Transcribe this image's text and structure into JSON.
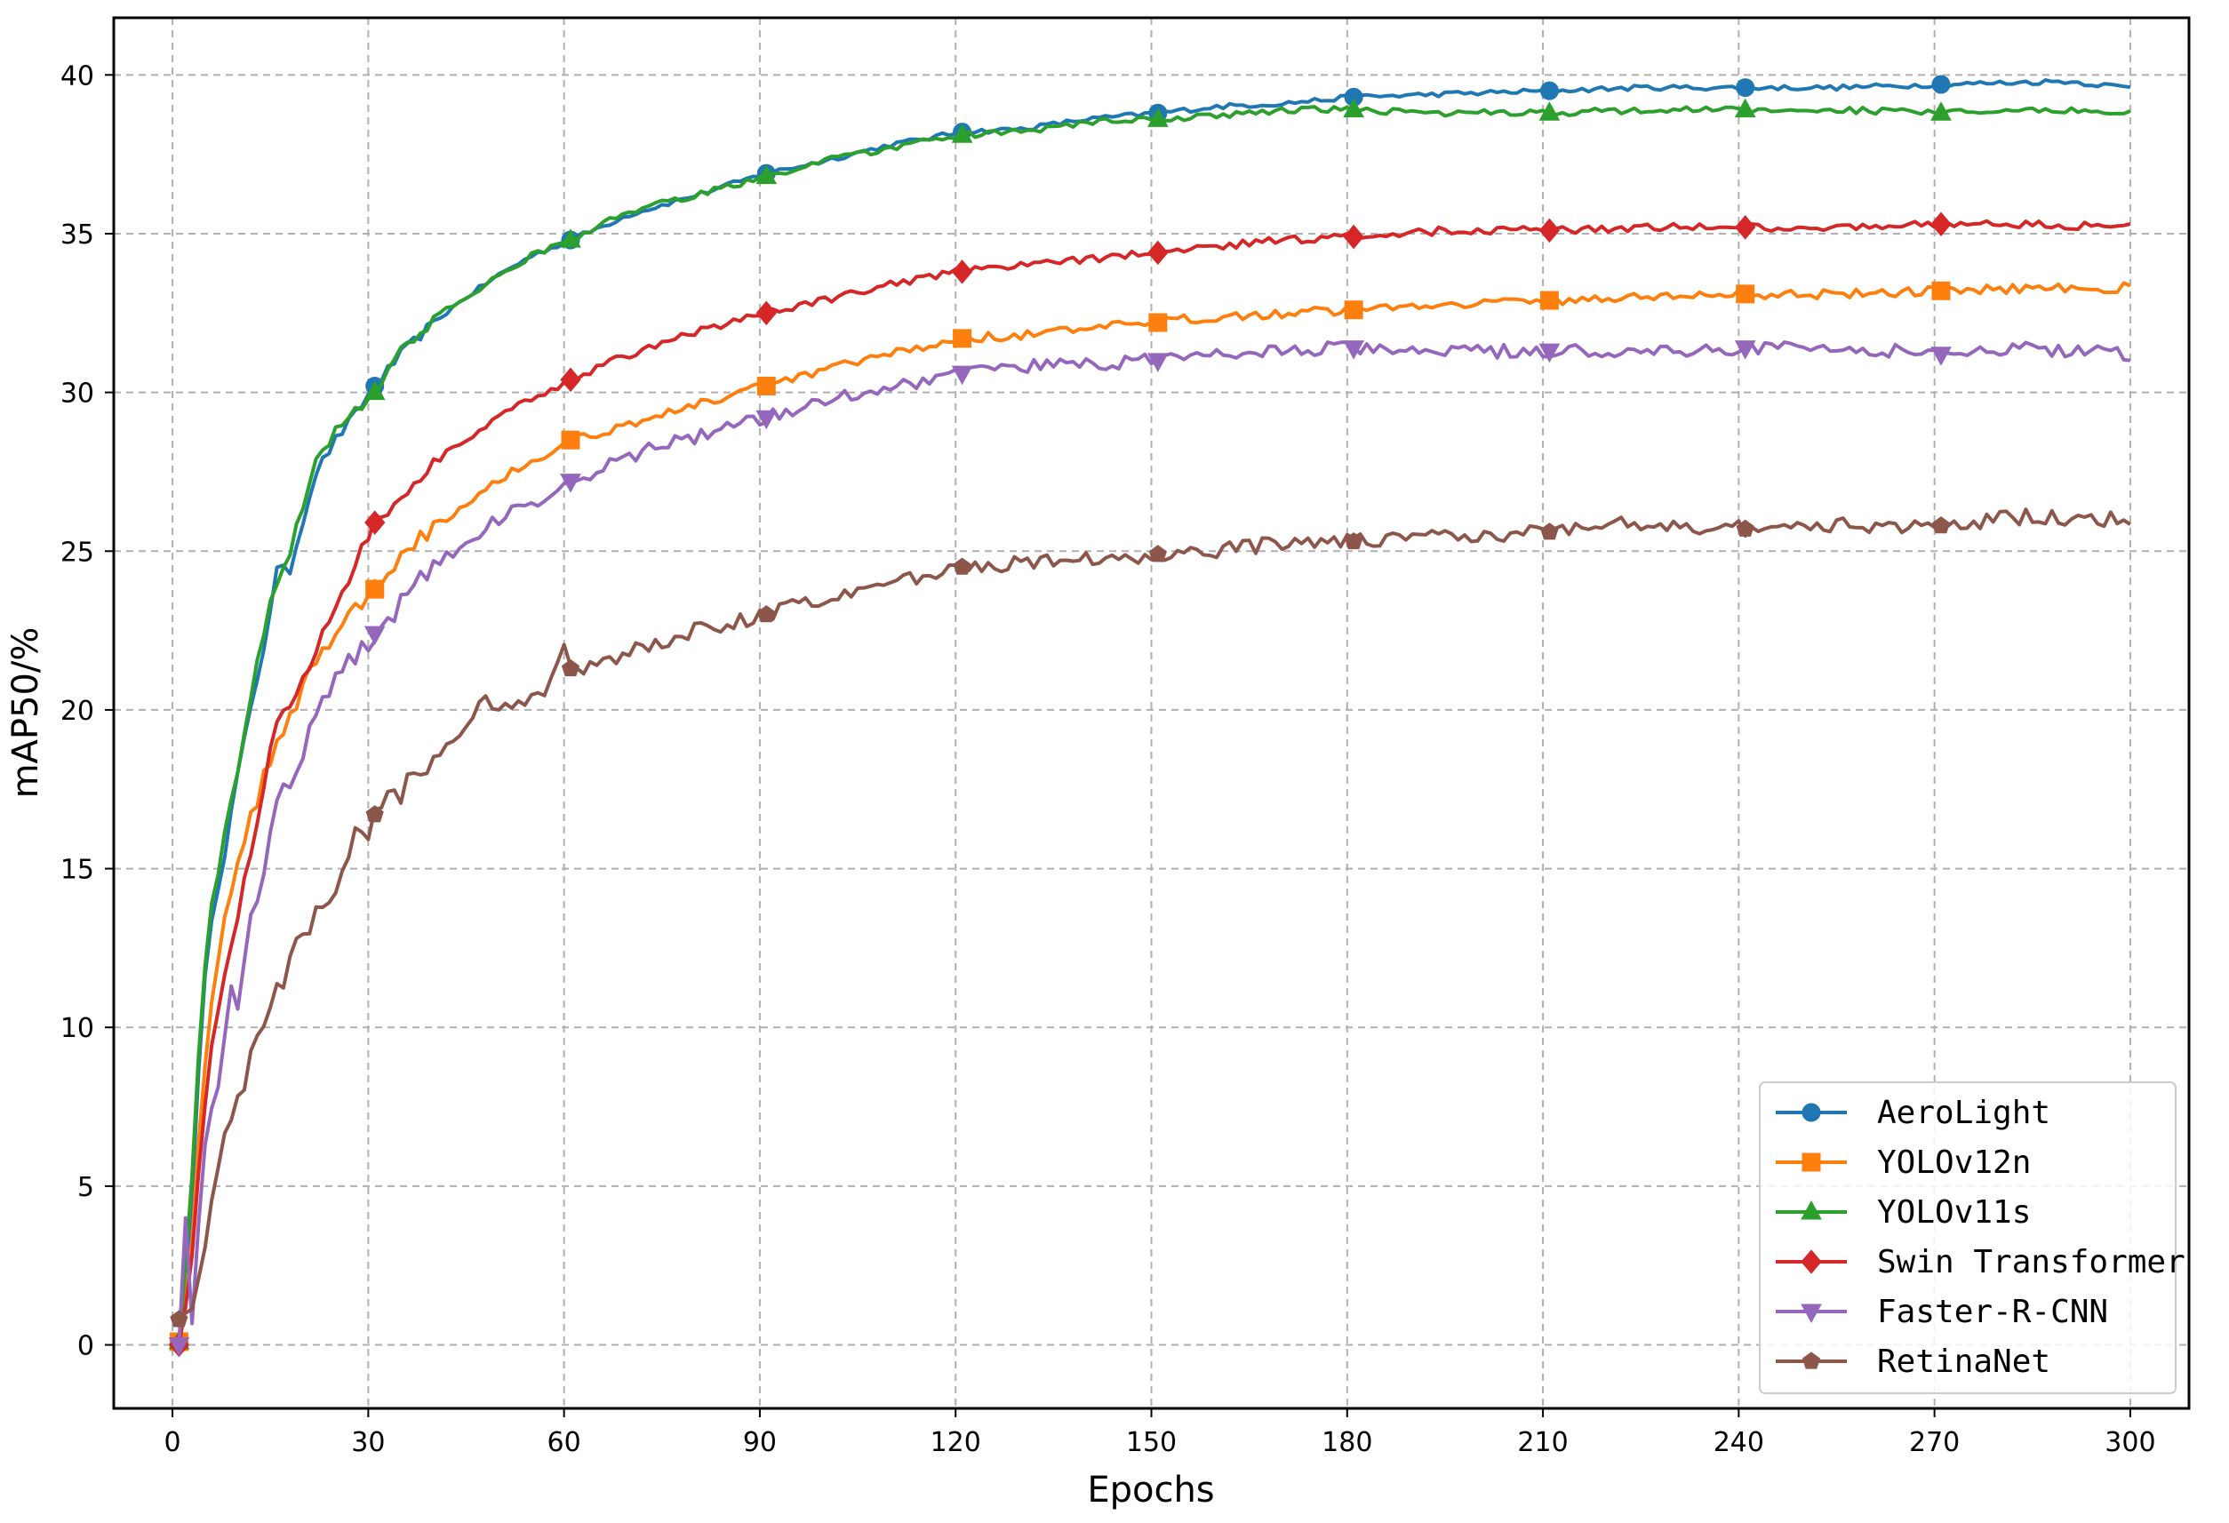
{
  "chart_data": {
    "type": "line",
    "title": "",
    "xlabel": "Epochs",
    "ylabel": "mAP50/%",
    "xlim": [
      -9,
      309
    ],
    "ylim": [
      -2,
      41.8
    ],
    "xticks": [
      0,
      30,
      60,
      90,
      120,
      150,
      180,
      210,
      240,
      270,
      300
    ],
    "yticks": [
      0,
      5,
      10,
      15,
      20,
      25,
      30,
      35,
      40
    ],
    "grid": true,
    "grid_style": "dashed",
    "legend_position": "lower-right",
    "marker_epochs": [
      1,
      31,
      61,
      91,
      121,
      151,
      181,
      211,
      241,
      271
    ],
    "series": [
      {
        "name": "AeroLight",
        "color": "#1f77b4",
        "marker": "circle",
        "points": [
          [
            1,
            0.1
          ],
          [
            2,
            2
          ],
          [
            3,
            4.8
          ],
          [
            4,
            8.5
          ],
          [
            5,
            11.5
          ],
          [
            6,
            13.5
          ],
          [
            8,
            15.5
          ],
          [
            10,
            18
          ],
          [
            12,
            20
          ],
          [
            14,
            22
          ],
          [
            16,
            24.4
          ],
          [
            18,
            24.4
          ],
          [
            20,
            26
          ],
          [
            22,
            27.5
          ],
          [
            25,
            28.5
          ],
          [
            28,
            29.3
          ],
          [
            31,
            30.2
          ],
          [
            35,
            31.2
          ],
          [
            40,
            32.2
          ],
          [
            45,
            33
          ],
          [
            50,
            33.7
          ],
          [
            55,
            34.3
          ],
          [
            61,
            34.8
          ],
          [
            70,
            35.6
          ],
          [
            80,
            36.2
          ],
          [
            91,
            36.9
          ],
          [
            100,
            37.3
          ],
          [
            110,
            37.8
          ],
          [
            121,
            38.2
          ],
          [
            130,
            38.3
          ],
          [
            140,
            38.6
          ],
          [
            151,
            38.8
          ],
          [
            160,
            39
          ],
          [
            170,
            39.1
          ],
          [
            181,
            39.3
          ],
          [
            195,
            39.4
          ],
          [
            211,
            39.5
          ],
          [
            225,
            39.6
          ],
          [
            241,
            39.6
          ],
          [
            255,
            39.6
          ],
          [
            271,
            39.7
          ],
          [
            290,
            39.8
          ],
          [
            300,
            39.6
          ]
        ]
      },
      {
        "name": "YOLOv12n",
        "color": "#ff7f0e",
        "marker": "square",
        "points": [
          [
            1,
            0.1
          ],
          [
            2,
            1.5
          ],
          [
            3,
            3.5
          ],
          [
            4,
            6.5
          ],
          [
            5,
            9
          ],
          [
            6,
            11
          ],
          [
            8,
            13.2
          ],
          [
            10,
            15
          ],
          [
            12,
            16.5
          ],
          [
            14,
            18
          ],
          [
            16,
            19
          ],
          [
            18,
            19.8
          ],
          [
            20,
            20.8
          ],
          [
            23,
            21.8
          ],
          [
            26,
            22.8
          ],
          [
            31,
            23.8
          ],
          [
            35,
            25
          ],
          [
            40,
            25.8
          ],
          [
            45,
            26.5
          ],
          [
            50,
            27.3
          ],
          [
            55,
            27.8
          ],
          [
            61,
            28.5
          ],
          [
            70,
            29
          ],
          [
            80,
            29.6
          ],
          [
            91,
            30.2
          ],
          [
            100,
            30.7
          ],
          [
            110,
            31.2
          ],
          [
            121,
            31.7
          ],
          [
            130,
            31.8
          ],
          [
            140,
            32
          ],
          [
            151,
            32.2
          ],
          [
            160,
            32.4
          ],
          [
            170,
            32.5
          ],
          [
            181,
            32.6
          ],
          [
            195,
            32.8
          ],
          [
            211,
            32.9
          ],
          [
            225,
            33
          ],
          [
            241,
            33.1
          ],
          [
            255,
            33.1
          ],
          [
            271,
            33.2
          ],
          [
            285,
            33.3
          ],
          [
            300,
            33.3
          ]
        ]
      },
      {
        "name": "YOLOv11s",
        "color": "#2ca02c",
        "marker": "triangle-up",
        "points": [
          [
            1,
            0.1
          ],
          [
            2,
            2.5
          ],
          [
            3,
            5.5
          ],
          [
            4,
            9
          ],
          [
            5,
            12
          ],
          [
            6,
            14
          ],
          [
            8,
            16
          ],
          [
            10,
            18.2
          ],
          [
            12,
            20.5
          ],
          [
            14,
            22.5
          ],
          [
            16,
            24
          ],
          [
            18,
            25
          ],
          [
            20,
            26.5
          ],
          [
            22,
            27.8
          ],
          [
            25,
            28.8
          ],
          [
            28,
            29.5
          ],
          [
            31,
            30
          ],
          [
            35,
            31.3
          ],
          [
            40,
            32.3
          ],
          [
            45,
            33
          ],
          [
            50,
            33.7
          ],
          [
            55,
            34.3
          ],
          [
            61,
            34.8
          ],
          [
            70,
            35.7
          ],
          [
            80,
            36.2
          ],
          [
            91,
            36.8
          ],
          [
            100,
            37.3
          ],
          [
            110,
            37.7
          ],
          [
            121,
            38.1
          ],
          [
            130,
            38.2
          ],
          [
            140,
            38.5
          ],
          [
            151,
            38.6
          ],
          [
            160,
            38.7
          ],
          [
            170,
            38.9
          ],
          [
            181,
            38.9
          ],
          [
            195,
            38.8
          ],
          [
            211,
            38.8
          ],
          [
            225,
            38.9
          ],
          [
            241,
            38.9
          ],
          [
            255,
            38.9
          ],
          [
            271,
            38.8
          ],
          [
            290,
            38.9
          ],
          [
            300,
            38.8
          ]
        ]
      },
      {
        "name": "Swin Transformer",
        "color": "#d62728",
        "marker": "diamond",
        "points": [
          [
            1,
            0
          ],
          [
            2,
            1.2
          ],
          [
            3,
            3
          ],
          [
            4,
            5.5
          ],
          [
            5,
            7.5
          ],
          [
            6,
            9.5
          ],
          [
            8,
            11.5
          ],
          [
            10,
            13.5
          ],
          [
            12,
            15.5
          ],
          [
            14,
            17.5
          ],
          [
            16,
            19.8
          ],
          [
            18,
            20
          ],
          [
            20,
            21
          ],
          [
            23,
            22.5
          ],
          [
            26,
            23.8
          ],
          [
            28,
            24.6
          ],
          [
            31,
            25.9
          ],
          [
            35,
            26.8
          ],
          [
            40,
            27.8
          ],
          [
            45,
            28.5
          ],
          [
            50,
            29.2
          ],
          [
            55,
            29.8
          ],
          [
            61,
            30.4
          ],
          [
            70,
            31.2
          ],
          [
            80,
            31.9
          ],
          [
            91,
            32.5
          ],
          [
            100,
            32.9
          ],
          [
            110,
            33.4
          ],
          [
            121,
            33.8
          ],
          [
            130,
            34
          ],
          [
            140,
            34.2
          ],
          [
            151,
            34.4
          ],
          [
            160,
            34.6
          ],
          [
            170,
            34.8
          ],
          [
            181,
            34.9
          ],
          [
            195,
            35.1
          ],
          [
            211,
            35.1
          ],
          [
            225,
            35.2
          ],
          [
            241,
            35.2
          ],
          [
            255,
            35.2
          ],
          [
            271,
            35.3
          ],
          [
            285,
            35.3
          ],
          [
            300,
            35.2
          ]
        ]
      },
      {
        "name": "Faster-R-CNN",
        "color": "#9467bd",
        "marker": "triangle-down",
        "points": [
          [
            1,
            0
          ],
          [
            2,
            4
          ],
          [
            3,
            1
          ],
          [
            4,
            3.5
          ],
          [
            5,
            6
          ],
          [
            6,
            7.5
          ],
          [
            8,
            9.5
          ],
          [
            9,
            11.2
          ],
          [
            10,
            10.5
          ],
          [
            12,
            13.5
          ],
          [
            14,
            15.2
          ],
          [
            16,
            16.8
          ],
          [
            18,
            17.8
          ],
          [
            20,
            18.8
          ],
          [
            23,
            20.5
          ],
          [
            26,
            21.3
          ],
          [
            31,
            22.4
          ],
          [
            35,
            23.5
          ],
          [
            40,
            24.5
          ],
          [
            45,
            25.3
          ],
          [
            50,
            26
          ],
          [
            55,
            26.5
          ],
          [
            61,
            27.2
          ],
          [
            70,
            28
          ],
          [
            80,
            28.6
          ],
          [
            91,
            29.2
          ],
          [
            100,
            29.8
          ],
          [
            110,
            30.2
          ],
          [
            121,
            30.6
          ],
          [
            130,
            30.8
          ],
          [
            140,
            30.9
          ],
          [
            151,
            31
          ],
          [
            160,
            31.2
          ],
          [
            170,
            31.3
          ],
          [
            181,
            31.4
          ],
          [
            195,
            31.3
          ],
          [
            211,
            31.3
          ],
          [
            225,
            31.3
          ],
          [
            241,
            31.4
          ],
          [
            255,
            31.4
          ],
          [
            271,
            31.2
          ],
          [
            285,
            31.4
          ],
          [
            300,
            31.2
          ]
        ]
      },
      {
        "name": "RetinaNet",
        "color": "#8c564b",
        "marker": "pentagon",
        "points": [
          [
            1,
            0.8
          ],
          [
            2,
            1
          ],
          [
            3,
            1.5
          ],
          [
            4,
            2.2
          ],
          [
            5,
            3.5
          ],
          [
            6,
            4.5
          ],
          [
            8,
            6.5
          ],
          [
            10,
            7.5
          ],
          [
            12,
            9
          ],
          [
            14,
            10
          ],
          [
            16,
            11.2
          ],
          [
            18,
            12
          ],
          [
            20,
            12.8
          ],
          [
            23,
            14
          ],
          [
            26,
            15
          ],
          [
            28,
            15.8
          ],
          [
            31,
            16.7
          ],
          [
            35,
            17.5
          ],
          [
            40,
            18.3
          ],
          [
            45,
            19.5
          ],
          [
            48,
            20.5
          ],
          [
            50,
            20
          ],
          [
            55,
            20.3
          ],
          [
            58,
            20.8
          ],
          [
            60,
            22
          ],
          [
            61,
            21.3
          ],
          [
            65,
            21.3
          ],
          [
            70,
            21.8
          ],
          [
            80,
            22.5
          ],
          [
            91,
            23
          ],
          [
            100,
            23.5
          ],
          [
            110,
            24
          ],
          [
            121,
            24.5
          ],
          [
            130,
            24.6
          ],
          [
            140,
            24.7
          ],
          [
            151,
            24.9
          ],
          [
            160,
            25
          ],
          [
            170,
            25.3
          ],
          [
            181,
            25.3
          ],
          [
            195,
            25.5
          ],
          [
            211,
            25.6
          ],
          [
            225,
            25.9
          ],
          [
            241,
            25.7
          ],
          [
            255,
            25.8
          ],
          [
            271,
            25.8
          ],
          [
            285,
            26.1
          ],
          [
            300,
            26
          ]
        ]
      }
    ]
  }
}
